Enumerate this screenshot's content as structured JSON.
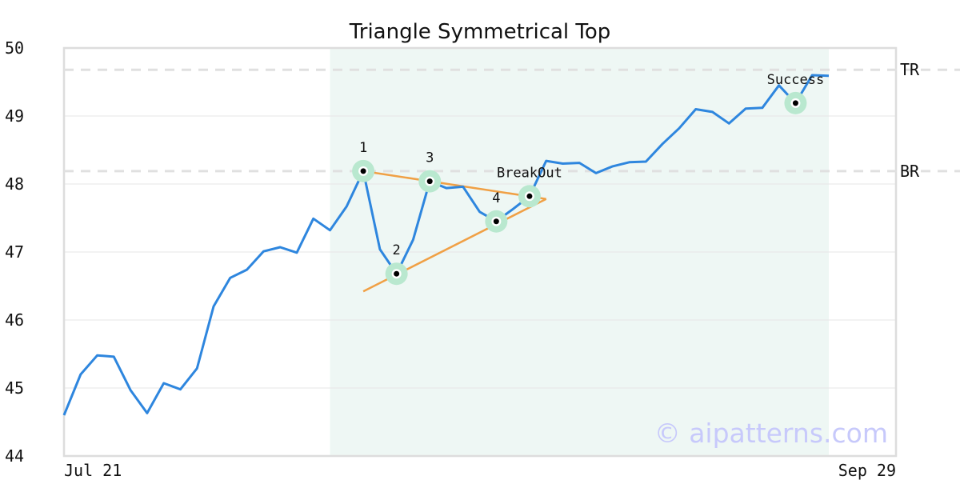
{
  "chart_data": {
    "type": "line",
    "title": "Triangle Symmetrical Top",
    "xlabel": "",
    "ylabel": "",
    "ylim": [
      44,
      50
    ],
    "yticks": [
      44,
      45,
      46,
      47,
      48,
      49,
      50
    ],
    "xticks": [
      "Jul 21",
      "Sep 29"
    ],
    "grid": true,
    "series": [
      {
        "color": "#2e86de",
        "values": [
          44.6,
          45.2,
          45.48,
          45.46,
          44.97,
          44.63,
          45.07,
          44.98,
          45.29,
          46.2,
          46.62,
          46.74,
          47.01,
          47.07,
          46.99,
          47.49,
          47.32,
          47.67,
          48.19,
          47.04,
          46.68,
          47.18,
          48.04,
          47.94,
          47.96,
          47.59,
          47.45,
          47.63,
          47.82,
          48.34,
          48.3,
          48.31,
          48.16,
          48.26,
          48.32,
          48.33,
          48.59,
          48.82,
          49.1,
          49.06,
          48.89,
          49.11,
          49.12,
          49.45,
          49.19,
          49.6,
          49.59
        ]
      }
    ],
    "pattern_region": {
      "start_index": 16,
      "end_index": 46,
      "color": "#eef7f4"
    },
    "reference_lines": [
      {
        "label": "TR",
        "value": 49.68,
        "color": "#e0e0e0"
      },
      {
        "label": "BR",
        "value": 48.19,
        "color": "#e0e0e0"
      }
    ],
    "trendlines": [
      {
        "color": "#f0a045",
        "points": [
          [
            18,
            48.19
          ],
          [
            29,
            47.78
          ]
        ]
      },
      {
        "color": "#f0a045",
        "points": [
          [
            18,
            46.42
          ],
          [
            29,
            47.78
          ]
        ]
      }
    ],
    "markers": [
      {
        "index": 18,
        "value": 48.19,
        "label": "1",
        "label_pos": "above"
      },
      {
        "index": 20,
        "value": 46.68,
        "label": "2",
        "label_pos": "above"
      },
      {
        "index": 22,
        "value": 48.04,
        "label": "3",
        "label_pos": "above"
      },
      {
        "index": 26,
        "value": 47.45,
        "label": "4",
        "label_pos": "above"
      },
      {
        "index": 28,
        "value": 47.82,
        "label": "BreakOut",
        "label_pos": "above"
      },
      {
        "index": 44,
        "value": 49.19,
        "label": "Success",
        "label_pos": "above"
      }
    ],
    "marker_color": "#b9e8cf",
    "watermark": "© aipatterns.com"
  }
}
